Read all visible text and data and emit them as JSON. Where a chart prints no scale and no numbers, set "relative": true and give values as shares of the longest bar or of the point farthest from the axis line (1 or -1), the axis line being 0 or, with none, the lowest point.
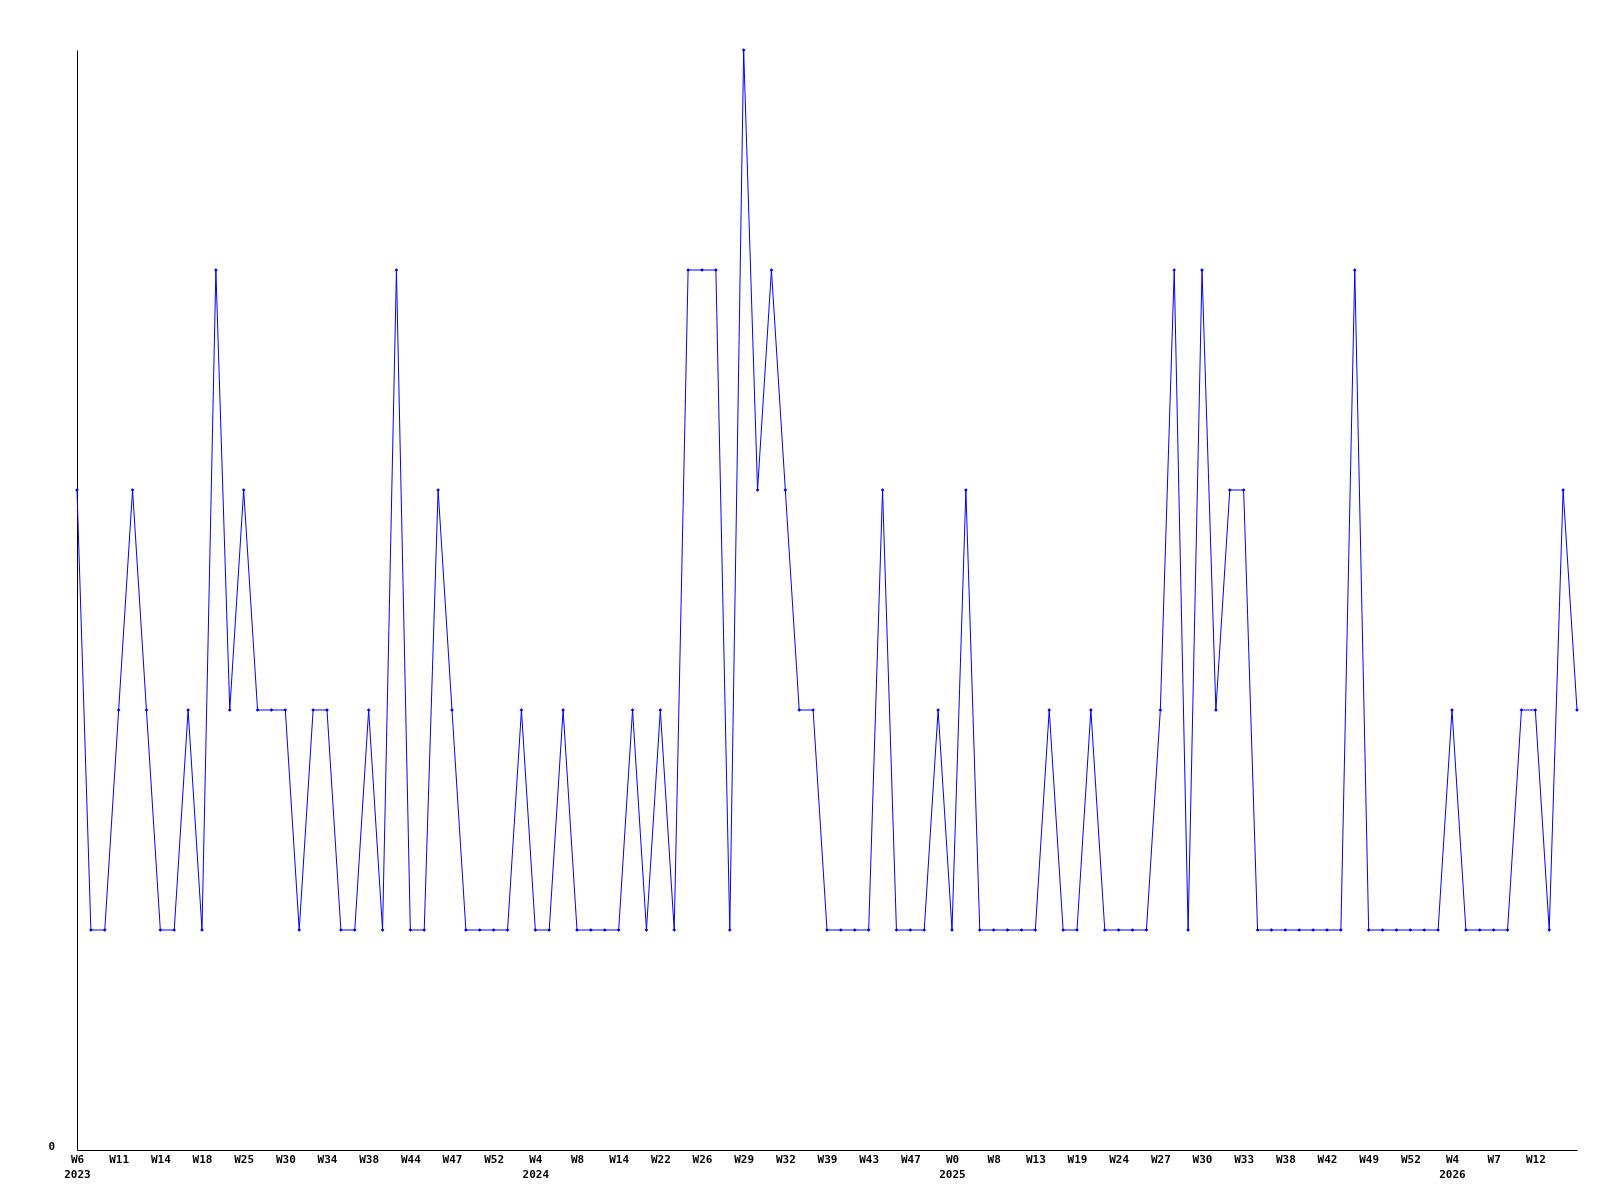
{
  "chart_data": {
    "type": "line",
    "relative": true,
    "grid": false,
    "legend": false,
    "marker": "diamond",
    "line_style": "solid",
    "annotations": [
      "0"
    ],
    "categories": [
      "W6\n2023",
      null,
      null,
      "W11",
      null,
      null,
      "W14",
      null,
      null,
      "W18",
      null,
      null,
      "W25",
      null,
      null,
      "W30",
      null,
      null,
      "W34",
      null,
      null,
      "W38",
      null,
      null,
      "W44",
      null,
      null,
      "W47",
      null,
      null,
      "W52",
      null,
      null,
      "W4\n2024",
      null,
      null,
      "W8",
      null,
      null,
      "W14",
      null,
      null,
      "W22",
      null,
      null,
      "W26",
      null,
      null,
      "W29",
      null,
      null,
      "W32",
      null,
      null,
      "W39",
      null,
      null,
      "W43",
      null,
      null,
      "W47",
      null,
      null,
      "W0\n2025",
      null,
      null,
      "W8",
      null,
      null,
      "W13",
      null,
      null,
      "W19",
      null,
      null,
      "W24",
      null,
      null,
      "W27",
      null,
      null,
      "W30",
      null,
      null,
      "W33",
      null,
      null,
      "W38",
      null,
      null,
      "W42",
      null,
      null,
      "W49",
      null,
      null,
      "W52",
      null,
      null,
      "W4\n2026",
      null,
      null,
      "W7",
      null,
      null,
      "W12",
      null,
      null,
      null
    ],
    "series": [
      {
        "color": "#0000ff",
        "values": [
          0.6,
          0.2,
          0.2,
          0.4,
          0.6,
          0.4,
          0.2,
          0.2,
          0.4,
          0.2,
          0.8,
          0.4,
          0.6,
          0.4,
          0.4,
          0.4,
          0.2,
          0.4,
          0.4,
          0.2,
          0.2,
          0.4,
          0.2,
          0.8,
          0.2,
          0.2,
          0.6,
          0.4,
          0.2,
          0.2,
          0.2,
          0.2,
          0.4,
          0.2,
          0.2,
          0.4,
          0.2,
          0.2,
          0.2,
          0.2,
          0.4,
          0.2,
          0.4,
          0.2,
          0.8,
          0.8,
          0.8,
          0.2,
          1,
          0.6,
          0.8,
          0.6,
          0.4,
          0.4,
          0.2,
          0.2,
          0.2,
          0.2,
          0.6,
          0.2,
          0.2,
          0.2,
          0.4,
          0.2,
          0.6,
          0.2,
          0.2,
          0.2,
          0.2,
          0.2,
          0.4,
          0.2,
          0.2,
          0.4,
          0.2,
          0.2,
          0.2,
          0.2,
          0.4,
          0.8,
          0.2,
          0.8,
          0.4,
          0.6,
          0.6,
          0.2,
          0.2,
          0.2,
          0.2,
          0.2,
          0.2,
          0.2,
          0.8,
          0.2,
          0.2,
          0.2,
          0.2,
          0.2,
          0.2,
          0.4,
          0.2,
          0.2,
          0.2,
          0.2,
          0.4,
          0.4,
          0.2,
          0.6,
          0.4
        ]
      }
    ]
  }
}
